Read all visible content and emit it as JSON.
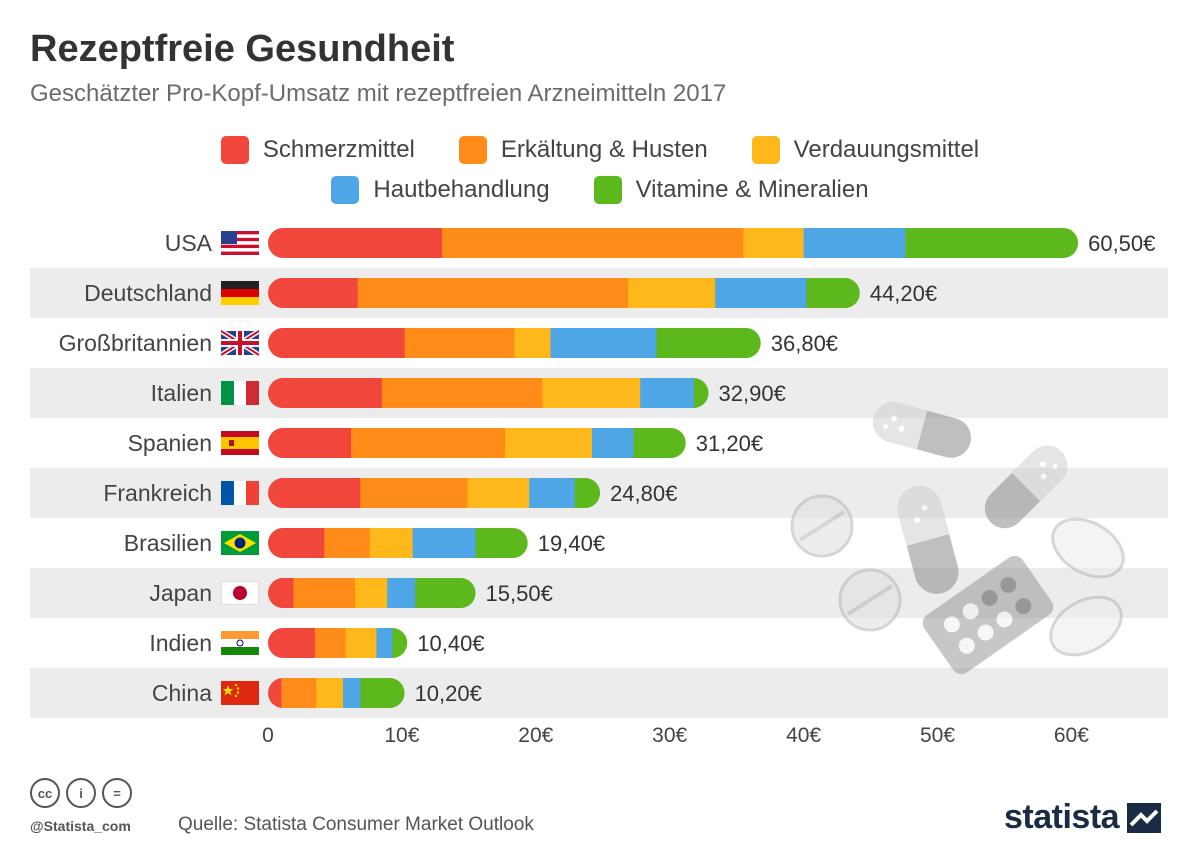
{
  "header": {
    "title": "Rezeptfreie Gesundheit",
    "subtitle": "Geschätzter Pro-Kopf-Umsatz mit rezeptfreien Arzneimitteln 2017"
  },
  "colors": {
    "schmerz": "#f0463c",
    "erkaeltung": "#ff8c19",
    "verdauung": "#ffb81c",
    "haut": "#4ea6e6",
    "vitamine": "#5cb81c",
    "band": "#ececec",
    "axis_text": "#444444"
  },
  "chart_data": {
    "type": "bar",
    "orientation": "horizontal",
    "stacked": true,
    "categories": [
      "USA",
      "Deutschland",
      "Großbritannien",
      "Italien",
      "Spanien",
      "Frankreich",
      "Brasilien",
      "Japan",
      "Indien",
      "China"
    ],
    "series": [
      {
        "name": "Schmerzmittel",
        "values": [
          13.0,
          6.7,
          10.2,
          8.5,
          6.2,
          6.9,
          4.2,
          1.9,
          3.5,
          1.0
        ]
      },
      {
        "name": "Erkältung & Husten",
        "values": [
          22.5,
          20.2,
          8.2,
          12.0,
          11.5,
          8.0,
          3.4,
          4.6,
          2.3,
          2.6
        ]
      },
      {
        "name": "Verdauungsmittel",
        "values": [
          4.5,
          6.5,
          2.7,
          7.3,
          6.5,
          4.6,
          3.2,
          2.4,
          2.3,
          2.0
        ]
      },
      {
        "name": "Hautbehandlung",
        "values": [
          7.6,
          6.8,
          7.9,
          4.0,
          3.1,
          3.4,
          4.7,
          2.1,
          1.2,
          1.3
        ]
      },
      {
        "name": "Vitamine & Mineralien",
        "values": [
          12.9,
          4.0,
          7.8,
          1.1,
          3.9,
          1.9,
          3.9,
          4.5,
          1.1,
          3.3
        ]
      }
    ],
    "totals": [
      60.5,
      44.2,
      36.8,
      32.9,
      31.2,
      24.8,
      19.4,
      15.5,
      10.4,
      10.2
    ],
    "total_labels": [
      "60,50€",
      "44,20€",
      "36,80€",
      "32,90€",
      "31,20€",
      "24,80€",
      "19,40€",
      "15,50€",
      "10,40€",
      "10,20€"
    ],
    "xlim": [
      0,
      65
    ],
    "xticks": [
      0,
      10,
      20,
      30,
      40,
      50,
      60
    ],
    "xtick_labels": [
      "0",
      "10€",
      "20€",
      "30€",
      "40€",
      "50€",
      "60€"
    ],
    "legend": "top-center",
    "grid": false,
    "alternating_row_bands": true
  },
  "flags": [
    "us-flag-icon",
    "de-flag-icon",
    "gb-flag-icon",
    "it-flag-icon",
    "es-flag-icon",
    "fr-flag-icon",
    "br-flag-icon",
    "jp-flag-icon",
    "in-flag-icon",
    "cn-flag-icon"
  ],
  "decoration": {
    "illustration": "pills-illustration"
  },
  "footer": {
    "cc_icons": [
      "cc",
      "i",
      "="
    ],
    "handle": "@Statista_com",
    "source": "Quelle: Statista Consumer Market Outlook",
    "brand": "statista"
  }
}
